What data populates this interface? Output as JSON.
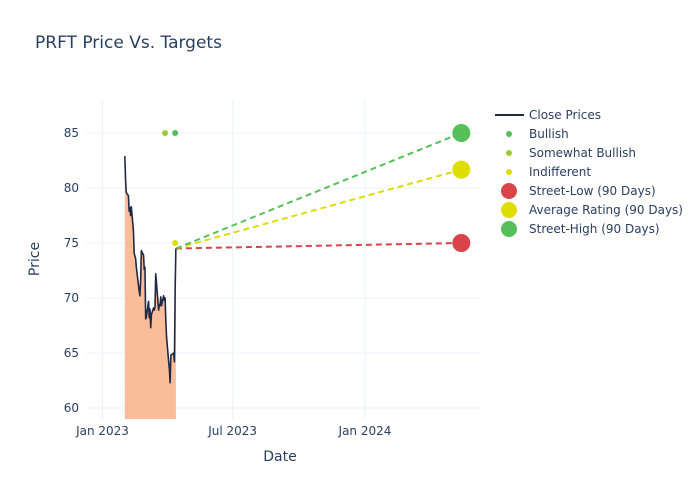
{
  "chart_data": {
    "type": "line",
    "title": "PRFT Price Vs. Targets",
    "xlabel": "Date",
    "ylabel": "Price",
    "ylim": [
      59,
      88
    ],
    "yticks": [
      60,
      65,
      70,
      75,
      80,
      85
    ],
    "xticks": [
      {
        "label": "Jan 2023",
        "date": "2023-01-01"
      },
      {
        "label": "Jul 2023",
        "date": "2023-07-01"
      },
      {
        "label": "Jan 2024",
        "date": "2024-01-01"
      }
    ],
    "xlim": [
      "2022-12-09",
      "2024-06-09"
    ],
    "grid": true,
    "legend": "right",
    "colors": {
      "close": "#1e2a44",
      "fill": "#fbbc9a",
      "bullish": "#55c05a",
      "somewhat_bullish": "#9acd32",
      "indifferent": "#dddd00",
      "street_low": "#d9434a",
      "average": "#dddd00",
      "street_high": "#55c05a"
    },
    "series": [
      {
        "name": "Close Prices",
        "type": "line",
        "points": [
          [
            "2023-02-01",
            82.9
          ],
          [
            "2023-02-02",
            80.8
          ],
          [
            "2023-02-03",
            79.6
          ],
          [
            "2023-02-06",
            79.3
          ],
          [
            "2023-02-07",
            77.9
          ],
          [
            "2023-02-08",
            78.2
          ],
          [
            "2023-02-09",
            77.5
          ],
          [
            "2023-02-10",
            78.3
          ],
          [
            "2023-02-13",
            76.1
          ],
          [
            "2023-02-14",
            74.1
          ],
          [
            "2023-02-15",
            73.8
          ],
          [
            "2023-02-16",
            73.6
          ],
          [
            "2023-02-17",
            72.8
          ],
          [
            "2023-02-21",
            70.6
          ],
          [
            "2023-02-22",
            70.2
          ],
          [
            "2023-02-23",
            71.6
          ],
          [
            "2023-02-24",
            74.3
          ],
          [
            "2023-02-27",
            73.9
          ],
          [
            "2023-02-28",
            72.6
          ],
          [
            "2023-03-01",
            72.8
          ],
          [
            "2023-03-02",
            68.1
          ],
          [
            "2023-03-03",
            68.3
          ],
          [
            "2023-03-06",
            69.7
          ],
          [
            "2023-03-07",
            68.2
          ],
          [
            "2023-03-08",
            69.0
          ],
          [
            "2023-03-09",
            67.3
          ],
          [
            "2023-03-10",
            68.5
          ],
          [
            "2023-03-13",
            69.1
          ],
          [
            "2023-03-14",
            68.9
          ],
          [
            "2023-03-15",
            69.2
          ],
          [
            "2023-03-16",
            72.2
          ],
          [
            "2023-03-17",
            71.4
          ],
          [
            "2023-03-20",
            68.9
          ],
          [
            "2023-03-21",
            69.4
          ],
          [
            "2023-03-22",
            69.3
          ],
          [
            "2023-03-23",
            70.1
          ],
          [
            "2023-03-24",
            69.3
          ],
          [
            "2023-03-27",
            70.2
          ],
          [
            "2023-03-28",
            69.8
          ],
          [
            "2023-03-29",
            70.0
          ],
          [
            "2023-03-30",
            68.0
          ],
          [
            "2023-03-31",
            66.5
          ],
          [
            "2023-04-03",
            64.2
          ],
          [
            "2023-04-04",
            63.5
          ],
          [
            "2023-04-05",
            62.3
          ],
          [
            "2023-04-06",
            64.8
          ],
          [
            "2023-04-10",
            65.0
          ],
          [
            "2023-04-11",
            64.2
          ],
          [
            "2023-04-12",
            70.8
          ],
          [
            "2023-04-13",
            74.5
          ]
        ]
      },
      {
        "name": "Bullish",
        "type": "markers",
        "points": [
          [
            "2023-04-12",
            85
          ]
        ]
      },
      {
        "name": "Somewhat Bullish",
        "type": "markers",
        "points": [
          [
            "2023-03-29",
            85
          ]
        ]
      },
      {
        "name": "Indifferent",
        "type": "markers",
        "points": [
          [
            "2023-04-12",
            75
          ]
        ]
      },
      {
        "name": "Street-Low (90 Days)",
        "type": "target",
        "from": [
          "2023-04-13",
          74.5
        ],
        "to": [
          "2024-05-14",
          75
        ]
      },
      {
        "name": "Average Rating (90 Days)",
        "type": "target",
        "from": [
          "2023-04-13",
          74.5
        ],
        "to": [
          "2024-05-14",
          81.67
        ]
      },
      {
        "name": "Street-High (90 Days)",
        "type": "target",
        "from": [
          "2023-04-13",
          74.5
        ],
        "to": [
          "2024-05-14",
          85
        ]
      }
    ]
  }
}
